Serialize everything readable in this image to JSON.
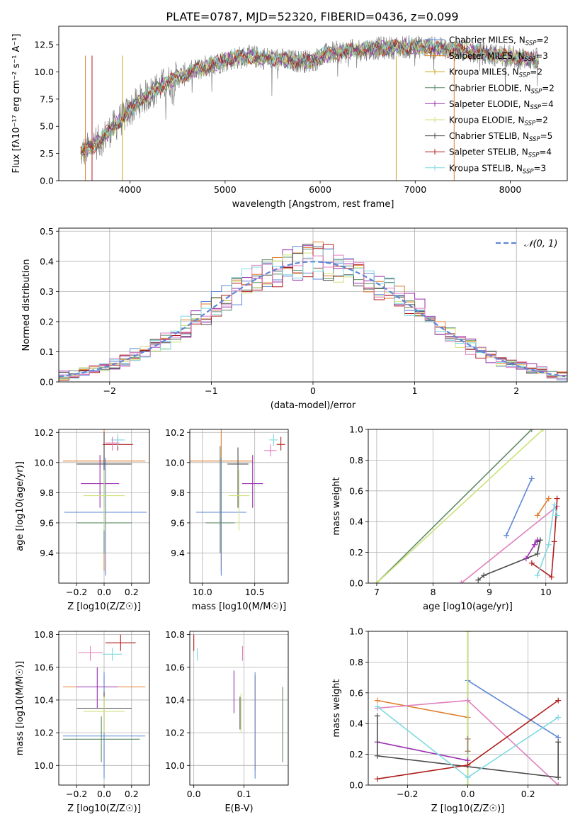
{
  "figure": {
    "title": "PLATE=0787, MJD=52320, FIBERID=0436, z=0.099"
  },
  "colors": {
    "blue": "#5f87d6",
    "orange": "#e07e2c",
    "green": "#5f8c68",
    "purple": "#9a2fb0",
    "yellowgreen": "#cde27a",
    "darkgray": "#4d4d4d",
    "red": "#b01c1c",
    "cyan": "#7fd9e0",
    "pink": "#e07fbf",
    "gray": "#808080"
  },
  "chart_data": [
    {
      "id": "spectrum",
      "type": "line",
      "title": "PLATE=0787, MJD=52320, FIBERID=0436, z=0.099",
      "xlabel": "wavelength [Angstrom, rest frame]",
      "ylabel": "Flux [fλ10⁻¹⁷ erg cm⁻² s⁻¹ A⁻¹]",
      "xlim": [
        3250,
        8600
      ],
      "ylim": [
        0,
        14.2
      ],
      "xticks": [
        4000,
        5000,
        6000,
        7000,
        8000
      ],
      "yticks": [
        0.0,
        2.5,
        5.0,
        7.5,
        10.0,
        12.5
      ],
      "legend_position": "top-right",
      "continuum": {
        "x": [
          3500,
          3700,
          3900,
          4100,
          4300,
          4500,
          4700,
          4900,
          5100,
          5300,
          5500,
          5700,
          5900,
          6100,
          6300,
          6500,
          6700,
          6900,
          7100,
          7300,
          7500,
          7700,
          7900,
          8100,
          8300
        ],
        "y": [
          2.6,
          3.8,
          5.6,
          7.3,
          8.6,
          9.5,
          10.2,
          10.8,
          11.3,
          11.4,
          11.2,
          11.0,
          11.0,
          11.7,
          11.9,
          12.1,
          12.2,
          12.3,
          12.3,
          12.1,
          12.0,
          11.7,
          11.5,
          11.3,
          11.1
        ]
      },
      "series": [
        {
          "name": "Chabrier MILES, N_SSP=2",
          "color": "#5f87d6"
        },
        {
          "name": "Salpeter MILES, N_SSP=3",
          "color": "#e07e2c"
        },
        {
          "name": "Kroupa MILES, N_SSP=2",
          "color": "#c8a020"
        },
        {
          "name": "Chabrier ELODIE, N_SSP=2",
          "color": "#5f8c68"
        },
        {
          "name": "Salpeter ELODIE, N_SSP=4",
          "color": "#9a2fb0"
        },
        {
          "name": "Kroupa ELODIE, N_SSP=2",
          "color": "#cde27a"
        },
        {
          "name": "Chabrier STELIB, N_SSP=5",
          "color": "#4d4d4d"
        },
        {
          "name": "Salpeter STELIB, N_SSP=4",
          "color": "#b01c1c"
        },
        {
          "name": "Kroupa STELIB, N_SSP=3",
          "color": "#7fd9e0"
        }
      ],
      "vertical_lines": [
        {
          "x": 3530,
          "color": "#e07e2c"
        },
        {
          "x": 3600,
          "color": "#b01c1c"
        },
        {
          "x": 3920,
          "color": "#c8a020"
        },
        {
          "x": 6800,
          "color": "#c8a020"
        },
        {
          "x": 7410,
          "color": "#e07e2c"
        }
      ]
    },
    {
      "id": "residuals",
      "type": "line",
      "xlabel": "(data-model)/error",
      "ylabel": "Normed distribution",
      "xlim": [
        -2.5,
        2.5
      ],
      "ylim": [
        0,
        0.51
      ],
      "xticks": [
        -2,
        -1,
        0,
        1,
        2
      ],
      "yticks": [
        0.0,
        0.1,
        0.2,
        0.3,
        0.4,
        0.5
      ],
      "grid": true,
      "legend_position": "top-right",
      "reference": {
        "name": "𝒩(0, 1)",
        "type": "gaussian",
        "mean": 0,
        "sigma": 1,
        "color": "#5f87d6"
      },
      "hist_bin_width": 0.1,
      "hist_series_colors": [
        "#5f87d6",
        "#e07e2c",
        "#5f8c68",
        "#9a2fb0",
        "#cde27a",
        "#4d4d4d",
        "#b01c1c",
        "#7fd9e0",
        "#e07fbf"
      ]
    },
    {
      "id": "age_vs_Z",
      "type": "scatter",
      "xlabel": "Z [log10(Z/Z☉)]",
      "ylabel": "age  [log10(age/yr)]",
      "xlim": [
        -0.33,
        0.33
      ],
      "ylim": [
        9.2,
        10.22
      ],
      "xticks": [
        -0.2,
        0.0,
        0.2
      ],
      "xticklabels": [
        "−0.2",
        "0.0",
        "0.2"
      ],
      "yticks": [
        9.4,
        9.6,
        9.8,
        10.0,
        10.2
      ],
      "grid": true,
      "points": [
        {
          "x": 0.0,
          "y": 10.01,
          "xerr": 0.3,
          "ylo": 9.28,
          "yhi": 10.22,
          "color": "#e07e2c"
        },
        {
          "x": 0.01,
          "y": 9.67,
          "xerr": 0.3,
          "ylo": 9.25,
          "yhi": 10.03,
          "color": "#5f87d6"
        },
        {
          "x": 0.0,
          "y": 9.6,
          "xerr": 0.2,
          "ylo": 9.4,
          "yhi": 10.05,
          "color": "#5f8c68"
        },
        {
          "x": 0.0,
          "y": 9.99,
          "xerr": 0.2,
          "ylo": 9.7,
          "yhi": 10.2,
          "color": "#4d4d4d"
        },
        {
          "x": -0.03,
          "y": 9.86,
          "xerr": 0.14,
          "ylo": 9.7,
          "yhi": 10.05,
          "color": "#9a2fb0"
        },
        {
          "x": 0.0,
          "y": 9.78,
          "xerr": 0.15,
          "ylo": 9.55,
          "yhi": 9.95,
          "color": "#cde27a"
        },
        {
          "x": 0.1,
          "y": 10.12,
          "xerr": 0.11,
          "ylo": 10.08,
          "yhi": 10.17,
          "color": "#b01c1c"
        },
        {
          "x": 0.1,
          "y": 10.15,
          "xerr": 0.05,
          "ylo": 10.11,
          "yhi": 10.19,
          "color": "#7fd9e0"
        },
        {
          "x": 0.06,
          "y": 10.13,
          "xerr": 0.05,
          "ylo": 10.08,
          "yhi": 10.17,
          "color": "#e07fbf"
        }
      ]
    },
    {
      "id": "age_vs_mass",
      "type": "scatter",
      "xlabel": "mass [log10(M/M☉)]",
      "xlim": [
        9.88,
        10.82
      ],
      "ylim": [
        9.2,
        10.22
      ],
      "xticks": [
        10.0,
        10.5
      ],
      "yticks": [
        9.4,
        9.6,
        9.8,
        10.0,
        10.2
      ],
      "grid": true,
      "points": [
        {
          "x": 10.18,
          "y": 10.01,
          "xerr": 0.3,
          "ylo": 9.28,
          "yhi": 10.22,
          "color": "#e07e2c"
        },
        {
          "x": 10.18,
          "y": 9.67,
          "xerr": 0.24,
          "ylo": 9.25,
          "yhi": 10.03,
          "color": "#5f87d6"
        },
        {
          "x": 10.17,
          "y": 9.6,
          "xerr": 0.14,
          "ylo": 9.4,
          "yhi": 10.11,
          "color": "#5f8c68"
        },
        {
          "x": 10.34,
          "y": 9.99,
          "xerr": 0.1,
          "ylo": 9.7,
          "yhi": 10.1,
          "color": "#4d4d4d"
        },
        {
          "x": 10.48,
          "y": 9.86,
          "xerr": 0.1,
          "ylo": 9.7,
          "yhi": 10.05,
          "color": "#9a2fb0"
        },
        {
          "x": 10.35,
          "y": 9.78,
          "xerr": 0.1,
          "ylo": 9.55,
          "yhi": 9.95,
          "color": "#cde27a"
        },
        {
          "x": 10.75,
          "y": 10.12,
          "xerr": 0.04,
          "ylo": 10.08,
          "yhi": 10.17,
          "color": "#b01c1c"
        },
        {
          "x": 10.68,
          "y": 10.15,
          "xerr": 0.04,
          "ylo": 10.11,
          "yhi": 10.19,
          "color": "#7fd9e0"
        },
        {
          "x": 10.65,
          "y": 10.08,
          "xerr": 0.06,
          "ylo": 10.04,
          "yhi": 10.12,
          "color": "#e07fbf"
        }
      ]
    },
    {
      "id": "weight_vs_age",
      "type": "line",
      "xlabel": "age  [log10(age/yr)]",
      "ylabel": "mass weight",
      "xlim": [
        6.85,
        10.38
      ],
      "ylim": [
        0,
        1.0
      ],
      "xticks": [
        7,
        8,
        9,
        10
      ],
      "yticks": [
        0.0,
        0.2,
        0.4,
        0.6,
        0.8,
        1.0
      ],
      "grid": true,
      "series": [
        {
          "color": "#5f8c68",
          "points": [
            [
              7.0,
              0.0
            ],
            [
              9.75,
              1.0
            ]
          ]
        },
        {
          "color": "#cde27a",
          "points": [
            [
              7.0,
              0.0
            ],
            [
              9.95,
              1.0
            ]
          ]
        },
        {
          "color": "#e07fbf",
          "points": [
            [
              8.5,
              0.0
            ],
            [
              10.2,
              0.5
            ]
          ]
        },
        {
          "color": "#5f87d6",
          "points": [
            [
              9.3,
              0.31
            ],
            [
              9.75,
              0.68
            ]
          ]
        },
        {
          "color": "#e07e2c",
          "points": [
            [
              9.85,
              0.44
            ],
            [
              10.05,
              0.55
            ]
          ]
        },
        {
          "color": "#4d4d4d",
          "points": [
            [
              8.8,
              0.02
            ],
            [
              8.9,
              0.05
            ],
            [
              9.85,
              0.19
            ],
            [
              9.9,
              0.28
            ],
            [
              9.85,
              0.27
            ]
          ]
        },
        {
          "color": "#9a2fb0",
          "points": [
            [
              9.65,
              0.16
            ],
            [
              9.8,
              0.25
            ],
            [
              9.85,
              0.28
            ]
          ]
        },
        {
          "color": "#b01c1c",
          "points": [
            [
              9.75,
              0.13
            ],
            [
              10.1,
              0.04
            ],
            [
              10.15,
              0.27
            ],
            [
              10.2,
              0.55
            ]
          ]
        },
        {
          "color": "#7fd9e0",
          "points": [
            [
              9.85,
              0.05
            ],
            [
              10.05,
              0.25
            ],
            [
              10.15,
              0.51
            ],
            [
              10.2,
              0.44
            ]
          ]
        }
      ]
    },
    {
      "id": "mass_vs_Z",
      "type": "scatter",
      "xlabel": "Z [log10(Z/Z☉)]",
      "ylabel": "mass [log10(M/M☉)]",
      "xlim": [
        -0.33,
        0.33
      ],
      "ylim": [
        9.88,
        10.82
      ],
      "xticks": [
        -0.2,
        0.0,
        0.2
      ],
      "xticklabels": [
        "−0.2",
        "0.0",
        "0.2"
      ],
      "yticks": [
        10.0,
        10.2,
        10.4,
        10.6,
        10.8
      ],
      "grid": true,
      "points": [
        {
          "x": 0.0,
          "y": 10.48,
          "xerr": 0.3,
          "ylo": 9.97,
          "yhi": 10.55,
          "color": "#e07e2c"
        },
        {
          "x": 0.0,
          "y": 10.18,
          "xerr": 0.3,
          "ylo": 9.92,
          "yhi": 10.57,
          "color": "#5f87d6"
        },
        {
          "x": -0.02,
          "y": 10.16,
          "xerr": 0.28,
          "ylo": 10.02,
          "yhi": 10.3,
          "color": "#5f8c68"
        },
        {
          "x": 0.0,
          "y": 10.35,
          "xerr": 0.2,
          "ylo": 10.22,
          "yhi": 10.45,
          "color": "#4d4d4d"
        },
        {
          "x": -0.05,
          "y": 10.48,
          "xerr": 0.15,
          "ylo": 10.35,
          "yhi": 10.6,
          "color": "#9a2fb0"
        },
        {
          "x": 0.0,
          "y": 10.33,
          "xerr": 0.15,
          "ylo": 10.2,
          "yhi": 10.42,
          "color": "#cde27a"
        },
        {
          "x": 0.12,
          "y": 10.75,
          "xerr": 0.11,
          "ylo": 10.7,
          "yhi": 10.8,
          "color": "#b01c1c"
        },
        {
          "x": 0.06,
          "y": 10.68,
          "xerr": 0.07,
          "ylo": 10.64,
          "yhi": 10.72,
          "color": "#7fd9e0"
        },
        {
          "x": -0.1,
          "y": 10.69,
          "xerr": 0.09,
          "ylo": 10.64,
          "yhi": 10.73,
          "color": "#e07fbf"
        }
      ]
    },
    {
      "id": "mass_vs_ebv",
      "type": "scatter",
      "xlabel": "E(B-V)",
      "xlim": [
        -0.008,
        0.188
      ],
      "ylim": [
        9.88,
        10.82
      ],
      "xticks": [
        0.0,
        0.1
      ],
      "yticks": [
        10.0,
        10.2,
        10.4,
        10.6,
        10.8
      ],
      "grid": true,
      "points": [
        {
          "x": 0.122,
          "y": 10.48,
          "ylo": 9.97,
          "yhi": 10.55,
          "color": "#e07e2c"
        },
        {
          "x": 0.122,
          "y": 10.18,
          "ylo": 9.92,
          "yhi": 10.57,
          "color": "#5f87d6"
        },
        {
          "x": 0.177,
          "y": 10.16,
          "ylo": 10.02,
          "yhi": 10.48,
          "color": "#5f8c68"
        },
        {
          "x": 0.092,
          "y": 10.35,
          "ylo": 10.22,
          "yhi": 10.42,
          "color": "#4d4d4d"
        },
        {
          "x": 0.08,
          "y": 10.48,
          "ylo": 10.32,
          "yhi": 10.58,
          "color": "#9a2fb0"
        },
        {
          "x": 0.094,
          "y": 10.33,
          "ylo": 10.2,
          "yhi": 10.44,
          "color": "#cde27a"
        },
        {
          "x": 0.0,
          "y": 10.75,
          "ylo": 10.7,
          "yhi": 10.8,
          "color": "#b01c1c"
        },
        {
          "x": 0.007,
          "y": 10.68,
          "ylo": 10.64,
          "yhi": 10.72,
          "color": "#7fd9e0"
        },
        {
          "x": 0.097,
          "y": 10.69,
          "ylo": 10.64,
          "yhi": 10.73,
          "color": "#e07fbf"
        }
      ]
    },
    {
      "id": "weight_vs_Z",
      "type": "line",
      "xlabel": "Z [log10(Z/Z☉)]",
      "ylabel": "mass weight",
      "xlim": [
        -0.33,
        0.33
      ],
      "ylim": [
        0,
        1.0
      ],
      "xticks": [
        -0.2,
        0.0,
        0.2
      ],
      "xticklabels": [
        "−0.2",
        "0.0",
        "0.2"
      ],
      "yticks": [
        0.0,
        0.2,
        0.4,
        0.6,
        0.8,
        1.0
      ],
      "grid": true,
      "series": [
        {
          "color": "#5f87d6",
          "points": [
            [
              0.0,
              0.68
            ],
            [
              0.3,
              0.31
            ]
          ]
        },
        {
          "color": "#e07e2c",
          "points": [
            [
              -0.3,
              0.55
            ],
            [
              0.0,
              0.44
            ]
          ]
        },
        {
          "color": "#5f8c68",
          "points": [
            [
              0.0,
              0.0
            ],
            [
              0.0,
              1.0
            ]
          ]
        },
        {
          "color": "#cde27a",
          "points": [
            [
              0.0,
              0.0
            ],
            [
              0.0,
              1.0
            ]
          ]
        },
        {
          "color": "#e07fbf",
          "points": [
            [
              -0.3,
              0.5
            ],
            [
              0.0,
              0.55
            ],
            [
              0.3,
              0.0
            ]
          ]
        },
        {
          "color": "#9a2fb0",
          "points": [
            [
              -0.3,
              0.28
            ],
            [
              0.0,
              0.16
            ]
          ]
        },
        {
          "color": "#4d4d4d",
          "points": [
            [
              -0.3,
              0.45
            ],
            [
              -0.3,
              0.19
            ],
            [
              0.3,
              0.05
            ],
            [
              0.3,
              0.28
            ]
          ]
        },
        {
          "color": "#b01c1c",
          "points": [
            [
              -0.3,
              0.04
            ],
            [
              0.0,
              0.13
            ],
            [
              0.3,
              0.55
            ]
          ]
        },
        {
          "color": "#7fd9e0",
          "points": [
            [
              -0.3,
              0.51
            ],
            [
              0.0,
              0.05
            ],
            [
              0.3,
              0.44
            ]
          ]
        },
        {
          "color": "#a08060",
          "points": [
            [
              0.0,
              0.22
            ],
            [
              0.0,
              0.3
            ]
          ]
        }
      ]
    }
  ]
}
